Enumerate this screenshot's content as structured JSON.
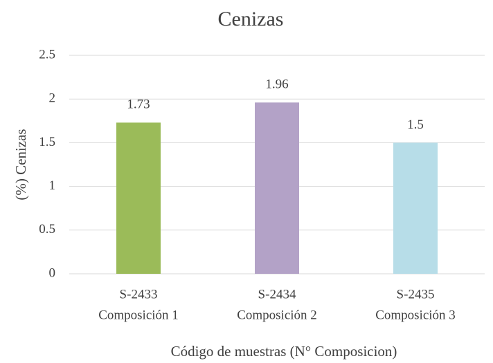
{
  "chart_data": {
    "type": "bar",
    "title": "Cenizas",
    "categories": [
      [
        "S-2433",
        "Composición 1"
      ],
      [
        "S-2434",
        "Composición 2"
      ],
      [
        "S-2435",
        "Composición 3"
      ]
    ],
    "values": [
      1.73,
      1.96,
      1.5
    ],
    "colors": [
      "#9bbb59",
      "#b3a2c7",
      "#b7dde8"
    ],
    "ylim": [
      0,
      2.5
    ],
    "yticks": [
      0,
      0.5,
      1,
      1.5,
      2,
      2.5
    ],
    "grid": true,
    "ylabel": "(%) Cenizas",
    "xlabel": "Código de muestras (N° Composicion)"
  }
}
